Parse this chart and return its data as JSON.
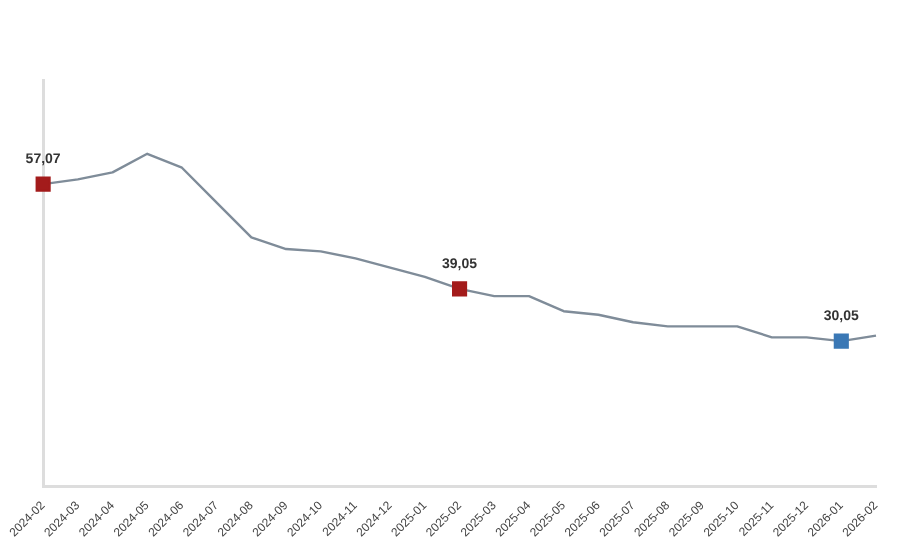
{
  "chart_data": {
    "type": "line",
    "categories": [
      "2024-02",
      "2024-03",
      "2024-04",
      "2024-05",
      "2024-06",
      "2024-07",
      "2024-08",
      "2024-09",
      "2024-10",
      "2024-11",
      "2024-12",
      "2025-01",
      "2025-02",
      "2025-03",
      "2025-04",
      "2025-05",
      "2025-06",
      "2025-07",
      "2025-08",
      "2025-09",
      "2025-10",
      "2025-11",
      "2025-12",
      "2026-01",
      "2026-02"
    ],
    "series": [
      {
        "color": "#7f8c99",
        "values": [
          57.07,
          57.9,
          59.1,
          62.3,
          59.9,
          53.9,
          47.9,
          45.9,
          45.5,
          44.3,
          42.7,
          41.1,
          39.05,
          37.8,
          37.8,
          35.2,
          34.6,
          33.3,
          32.6,
          32.6,
          32.6,
          30.7,
          30.7,
          30.05,
          31.0
        ],
        "colors": [
          "#a31b1b",
          null,
          null,
          null,
          null,
          null,
          null,
          null,
          null,
          null,
          null,
          null,
          "#a31b1b",
          null,
          null,
          null,
          null,
          null,
          null,
          null,
          null,
          null,
          null,
          "#3a78b5",
          null
        ],
        "value_labels": [
          "57,07",
          null,
          null,
          null,
          null,
          null,
          null,
          null,
          null,
          null,
          null,
          null,
          "39,05",
          null,
          null,
          null,
          null,
          null,
          null,
          null,
          null,
          null,
          null,
          "30,05",
          null
        ]
      }
    ],
    "ylim": [
      5,
      75
    ],
    "grid": false,
    "legend": false,
    "tick_labels": "x"
  }
}
